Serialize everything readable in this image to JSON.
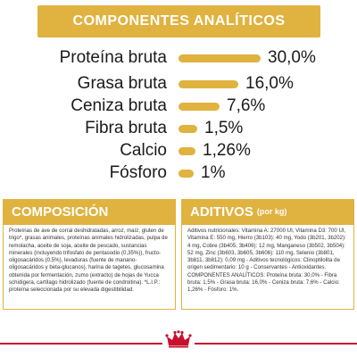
{
  "banner": {
    "title": "COMPONENTES ANALÍTICOS"
  },
  "colors": {
    "accent": "#e0b23f",
    "brand_red": "#c8102e"
  },
  "analytics": [
    {
      "label": "Proteína bruta",
      "value": "30,0%",
      "percent": 30.0
    },
    {
      "label": "Grasa bruta",
      "value": "16,0%",
      "percent": 16.0
    },
    {
      "label": "Ceniza bruta",
      "value": "7,6%",
      "percent": 7.6
    },
    {
      "label": "Fibra bruta",
      "value": "1,5%",
      "percent": 1.5
    },
    {
      "label": "Calcio",
      "value": "1,26%",
      "percent": 1.26
    },
    {
      "label": "Fósforo",
      "value": "1%",
      "percent": 1.0
    }
  ],
  "composicion": {
    "title": "COMPOSICIÓN",
    "text": "Proteínas de ave de corral deshidratadas, arroz, maíz, gluten de trigo*, grasas animales, proteínas animales hidrolizadas, pulpa de remolacha, aceite de soja, aceite de pescado, sustancias minerales (incluyendo trifosfato de pentasodio (0,35%)), fructo-oligosacáridos (0,5%), levaduras (fuente de manano-oligosacáridos y beta-glucanos), harina de tagetes, glucosamina obtenida por fermentación, zumo (extracto) de hojas de Yucca schidigera, cartílago hidrolizado (fuente de condroitina). *L.I.P.: proteína seleccionada por su elevada digestibilidad."
  },
  "aditivos": {
    "title": "ADITIVOS",
    "unit": "(por kg)",
    "text": "Aditivos nutricionales: Vitamina A: 27000 UI, Vitamina D3: 700 UI, Vitamina E: 550 mg, Hierro (3b103): 40 mg, Yodo (3b201, 3b202): 4 mg, Cobre (3b405, 3b406): 12 mg, Manganeso (3b502, 3b504): 52 mg, Zinc (3b603, 3b605, 3b606): 110 mg, Selenio (3b801, 3b811, 3b812): 0,09 mg - Aditivos tecnológicos: Clinoptilolita de origen sedimentario: 10 g - Conservantes - Antioxidantes. COMPONENTES ANALÍTICOS: Proteína bruta: 30,0% - Fibra bruta: 1,5% - Grasa bruta: 16,0% - Ceniza bruta: 7,6% - Calcio: 1,26% - Fósforo: 1%."
  },
  "footer": {
    "logo_icon": "crown-icon"
  }
}
